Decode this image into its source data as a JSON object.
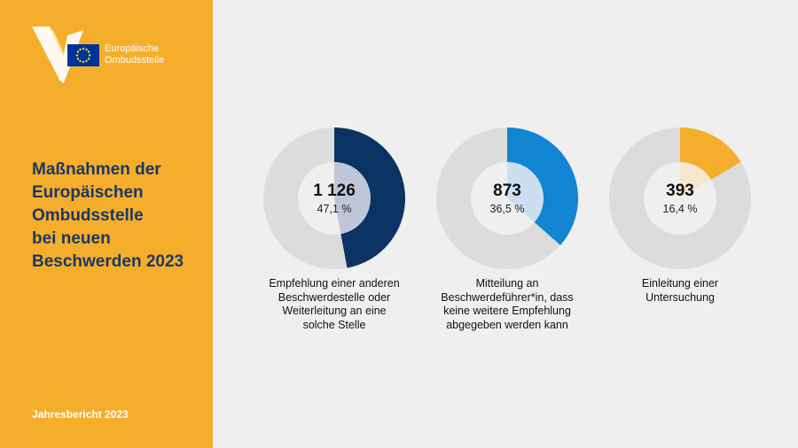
{
  "header": {
    "org_name_lines": [
      "Europäische",
      "Ombudsstelle"
    ],
    "title_lines": [
      "Maßnahmen der",
      "Europäischen",
      "Ombudsstelle",
      "bei neuen",
      "Beschwerden 2023"
    ],
    "footer": "Jahresbericht 2023"
  },
  "colors": {
    "sidebar": "#f5ae2c",
    "title": "#1b3863",
    "track": "#dcdcdc",
    "series": [
      "#0b3363",
      "#1185d1",
      "#f5ae2c"
    ],
    "inner": [
      "#c0c6da",
      "#ccdff0",
      "#f6e7cc"
    ]
  },
  "chart_data": {
    "type": "pie",
    "series": [
      {
        "value": 1126,
        "value_label": "1 126",
        "percent": 47.1,
        "percent_label": "47,1 %",
        "caption_lines": [
          "Empfehlung einer anderen",
          "Beschwerdestelle oder",
          "Weiterleitung an eine",
          "solche Stelle"
        ]
      },
      {
        "value": 873,
        "value_label": "873",
        "percent": 36.5,
        "percent_label": "36,5 %",
        "caption_lines": [
          "Mitteilung an",
          "Beschwerdeführer*in, dass",
          "keine weitere Empfehlung",
          "abgegeben werden kann"
        ]
      },
      {
        "value": 393,
        "value_label": "393",
        "percent": 16.4,
        "percent_label": "16,4 %",
        "caption_lines": [
          "Einleitung einer",
          "Untersuchung"
        ]
      }
    ]
  }
}
